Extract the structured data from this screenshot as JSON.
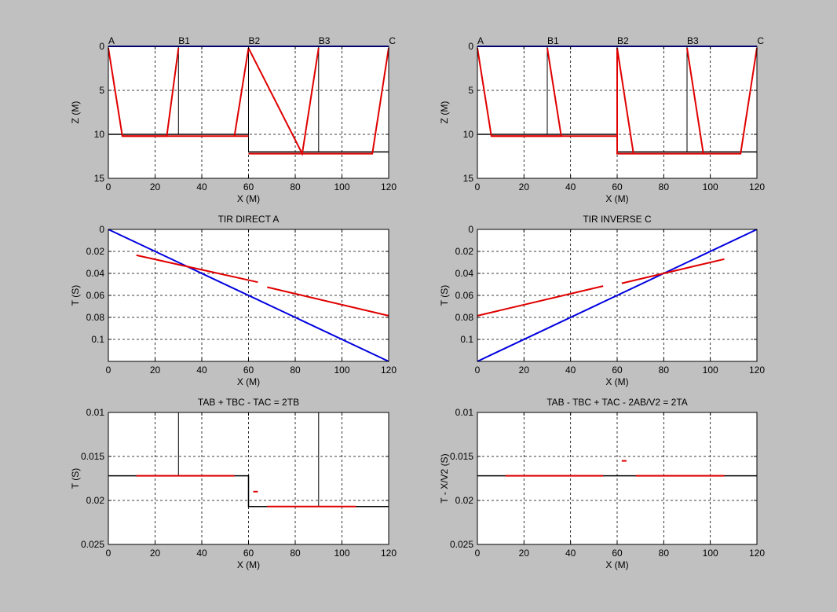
{
  "figure": {
    "background": "#c0c0c0"
  },
  "colors": {
    "red": "#e00000",
    "blue": "#0000e0",
    "black": "#000000"
  },
  "chart_data": [
    {
      "id": "model-left",
      "type": "line",
      "title": "",
      "xlabel": "X (M)",
      "ylabel": "Z (M)",
      "xlim": [
        0,
        120
      ],
      "ylim": [
        0,
        15
      ],
      "y_reversed": true,
      "xticks": [
        "0",
        "20",
        "40",
        "60",
        "80",
        "100",
        "120"
      ],
      "yticks": [
        {
          "v": 0,
          "t": "0"
        },
        {
          "v": 5,
          "t": "5"
        },
        {
          "v": 10,
          "t": "10"
        },
        {
          "v": 15,
          "t": "15"
        }
      ],
      "grid": true,
      "annotations": [
        {
          "x": 0,
          "text": "A"
        },
        {
          "x": 30,
          "text": "B1"
        },
        {
          "x": 60,
          "text": "B2"
        },
        {
          "x": 90,
          "text": "B3"
        },
        {
          "x": 120,
          "text": "C"
        }
      ],
      "series": [
        {
          "color": "blue",
          "width": 2,
          "x": [
            0,
            120
          ],
          "y": [
            0,
            0
          ]
        },
        {
          "color": "black",
          "width": 1.5,
          "x": [
            0,
            60
          ],
          "y": [
            10,
            10
          ]
        },
        {
          "color": "black",
          "width": 1.5,
          "x": [
            60,
            120
          ],
          "y": [
            12,
            12
          ]
        },
        {
          "color": "black",
          "width": 1,
          "x": [
            30,
            30
          ],
          "y": [
            0,
            10
          ]
        },
        {
          "color": "black",
          "width": 1,
          "x": [
            60,
            60
          ],
          "y": [
            0,
            12
          ]
        },
        {
          "color": "black",
          "width": 1,
          "x": [
            90,
            90
          ],
          "y": [
            0,
            12
          ]
        },
        {
          "color": "red",
          "width": 2,
          "x": [
            0,
            6,
            25,
            30
          ],
          "y": [
            0.2,
            10.2,
            10.2,
            0.2
          ]
        },
        {
          "color": "red",
          "width": 2,
          "x": [
            6,
            60
          ],
          "y": [
            10.2,
            10.2
          ]
        },
        {
          "color": "red",
          "width": 2,
          "x": [
            60,
            54
          ],
          "y": [
            0.2,
            10.2
          ]
        },
        {
          "color": "red",
          "width": 2,
          "x": [
            60,
            83,
            90
          ],
          "y": [
            0.2,
            12.2,
            0.2
          ]
        },
        {
          "color": "red",
          "width": 2,
          "x": [
            60,
            113,
            120
          ],
          "y": [
            12.2,
            12.2,
            0.2
          ]
        }
      ]
    },
    {
      "id": "model-right",
      "type": "line",
      "title": "",
      "xlabel": "X (M)",
      "ylabel": "Z (M)",
      "xlim": [
        0,
        120
      ],
      "ylim": [
        0,
        15
      ],
      "y_reversed": true,
      "xticks": [
        "0",
        "20",
        "40",
        "60",
        "80",
        "100",
        "120"
      ],
      "yticks": [
        {
          "v": 0,
          "t": "0"
        },
        {
          "v": 5,
          "t": "5"
        },
        {
          "v": 10,
          "t": "10"
        },
        {
          "v": 15,
          "t": "15"
        }
      ],
      "grid": true,
      "annotations": [
        {
          "x": 0,
          "text": "A"
        },
        {
          "x": 30,
          "text": "B1"
        },
        {
          "x": 60,
          "text": "B2"
        },
        {
          "x": 90,
          "text": "B3"
        },
        {
          "x": 120,
          "text": "C"
        }
      ],
      "series": [
        {
          "color": "blue",
          "width": 2,
          "x": [
            0,
            120
          ],
          "y": [
            0,
            0
          ]
        },
        {
          "color": "black",
          "width": 1.5,
          "x": [
            0,
            60
          ],
          "y": [
            10,
            10
          ]
        },
        {
          "color": "black",
          "width": 1.5,
          "x": [
            60,
            120
          ],
          "y": [
            12,
            12
          ]
        },
        {
          "color": "black",
          "width": 1,
          "x": [
            30,
            30
          ],
          "y": [
            0,
            10
          ]
        },
        {
          "color": "black",
          "width": 1,
          "x": [
            60,
            60
          ],
          "y": [
            0,
            12
          ]
        },
        {
          "color": "black",
          "width": 1,
          "x": [
            90,
            90
          ],
          "y": [
            0,
            12
          ]
        },
        {
          "color": "red",
          "width": 2,
          "x": [
            0,
            6,
            36,
            30
          ],
          "y": [
            0.2,
            10.2,
            10.2,
            0.2
          ]
        },
        {
          "color": "red",
          "width": 2,
          "x": [
            6,
            60
          ],
          "y": [
            10.2,
            10.2
          ]
        },
        {
          "color": "red",
          "width": 2,
          "x": [
            60,
            60,
            67
          ],
          "y": [
            0.2,
            12.2,
            12.2
          ]
        },
        {
          "color": "red",
          "width": 2,
          "x": [
            60,
            67
          ],
          "y": [
            0.2,
            12.2
          ]
        },
        {
          "color": "red",
          "width": 2,
          "x": [
            90,
            97
          ],
          "y": [
            0.2,
            12.2
          ]
        },
        {
          "color": "red",
          "width": 2,
          "x": [
            67,
            113,
            120
          ],
          "y": [
            12.2,
            12.2,
            0.2
          ]
        }
      ]
    },
    {
      "id": "direct-a",
      "type": "line",
      "title": "TIR DIRECT A",
      "xlabel": "X (M)",
      "ylabel": "T (S)",
      "xlim": [
        0,
        120
      ],
      "ylim": [
        0,
        0.12
      ],
      "y_reversed": true,
      "xticks": [
        "0",
        "20",
        "40",
        "60",
        "80",
        "100",
        "120"
      ],
      "yticks": [
        {
          "v": 0,
          "t": "0"
        },
        {
          "v": 0.02,
          "t": "0.02"
        },
        {
          "v": 0.04,
          "t": "0.04"
        },
        {
          "v": 0.06,
          "t": "0.06"
        },
        {
          "v": 0.08,
          "t": "0.08"
        },
        {
          "v": 0.1,
          "t": "0.1"
        }
      ],
      "grid": true,
      "series": [
        {
          "color": "blue",
          "width": 2,
          "x": [
            0,
            120
          ],
          "y": [
            0,
            0.12
          ]
        },
        {
          "color": "red",
          "width": 2,
          "x": [
            12,
            64
          ],
          "y": [
            0.0235,
            0.048
          ]
        },
        {
          "color": "red",
          "width": 2,
          "x": [
            68,
            120
          ],
          "y": [
            0.0525,
            0.0785
          ]
        }
      ]
    },
    {
      "id": "inverse-c",
      "type": "line",
      "title": "TIR INVERSE C",
      "xlabel": "X (M)",
      "ylabel": "T (S)",
      "xlim": [
        0,
        120
      ],
      "ylim": [
        0,
        0.12
      ],
      "y_reversed": true,
      "xticks": [
        "0",
        "20",
        "40",
        "60",
        "80",
        "100",
        "120"
      ],
      "yticks": [
        {
          "v": 0,
          "t": "0"
        },
        {
          "v": 0.02,
          "t": "0.02"
        },
        {
          "v": 0.04,
          "t": "0.04"
        },
        {
          "v": 0.06,
          "t": "0.06"
        },
        {
          "v": 0.08,
          "t": "0.08"
        },
        {
          "v": 0.1,
          "t": "0.1"
        }
      ],
      "grid": true,
      "series": [
        {
          "color": "blue",
          "width": 2,
          "x": [
            0,
            120
          ],
          "y": [
            0.12,
            0
          ]
        },
        {
          "color": "red",
          "width": 2,
          "x": [
            0,
            54
          ],
          "y": [
            0.0785,
            0.0515
          ]
        },
        {
          "color": "red",
          "width": 2,
          "x": [
            62,
            106
          ],
          "y": [
            0.049,
            0.027
          ]
        }
      ]
    },
    {
      "id": "sum-left",
      "type": "line",
      "title": "TAB + TBC - TAC = 2TB",
      "xlabel": "X (M)",
      "ylabel": "T (S)",
      "xlim": [
        0,
        120
      ],
      "ylim": [
        0.01,
        0.025
      ],
      "y_reversed": true,
      "xticks": [
        "0",
        "20",
        "40",
        "60",
        "80",
        "100",
        "120"
      ],
      "yticks": [
        {
          "v": 0.01,
          "t": "0.01"
        },
        {
          "v": 0.015,
          "t": "0.015"
        },
        {
          "v": 0.02,
          "t": "0.02"
        },
        {
          "v": 0.025,
          "t": "0.025"
        }
      ],
      "grid": true,
      "series": [
        {
          "color": "black",
          "width": 1.5,
          "x": [
            0,
            60,
            60,
            120
          ],
          "y": [
            0.0172,
            0.0172,
            0.0207,
            0.0207
          ]
        },
        {
          "color": "black",
          "width": 1,
          "x": [
            30,
            30
          ],
          "y": [
            0.01,
            0.0172
          ]
        },
        {
          "color": "black",
          "width": 1,
          "x": [
            90,
            90
          ],
          "y": [
            0.01,
            0.0207
          ]
        },
        {
          "color": "red",
          "width": 2,
          "x": [
            12,
            54
          ],
          "y": [
            0.0172,
            0.0172
          ]
        },
        {
          "color": "red",
          "width": 2,
          "x": [
            62,
            64
          ],
          "y": [
            0.019,
            0.019
          ]
        },
        {
          "color": "red",
          "width": 2,
          "x": [
            68,
            106
          ],
          "y": [
            0.0207,
            0.0207
          ]
        }
      ]
    },
    {
      "id": "sum-right",
      "type": "line",
      "title": "TAB - TBC + TAC - 2AB/V2 = 2TA",
      "xlabel": "X (M)",
      "ylabel": "T - X/V2 (S)",
      "xlim": [
        0,
        120
      ],
      "ylim": [
        0.01,
        0.025
      ],
      "y_reversed": true,
      "xticks": [
        "0",
        "20",
        "40",
        "60",
        "80",
        "100",
        "120"
      ],
      "yticks": [
        {
          "v": 0.01,
          "t": "0.01"
        },
        {
          "v": 0.015,
          "t": "0.015"
        },
        {
          "v": 0.02,
          "t": "0.02"
        },
        {
          "v": 0.025,
          "t": "0.025"
        }
      ],
      "grid": true,
      "series": [
        {
          "color": "black",
          "width": 1.5,
          "x": [
            0,
            120
          ],
          "y": [
            0.0172,
            0.0172
          ]
        },
        {
          "color": "red",
          "width": 2,
          "x": [
            12,
            54
          ],
          "y": [
            0.0172,
            0.0172
          ]
        },
        {
          "color": "red",
          "width": 2,
          "x": [
            62,
            64
          ],
          "y": [
            0.0155,
            0.0155
          ]
        },
        {
          "color": "red",
          "width": 2,
          "x": [
            68,
            106
          ],
          "y": [
            0.0172,
            0.0172
          ]
        }
      ]
    }
  ]
}
